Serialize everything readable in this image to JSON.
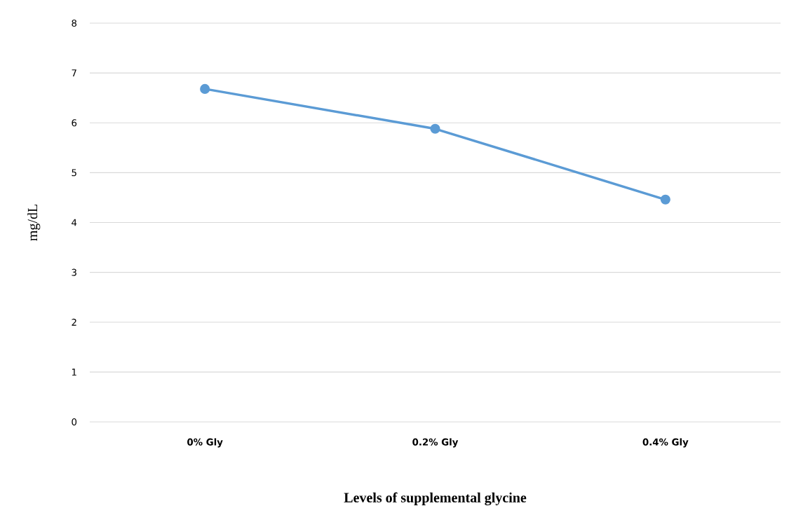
{
  "chart_data": {
    "type": "line",
    "xlabel": "Levels of supplemental glycine",
    "ylabel": "mg/dL",
    "categories": [
      "0% Gly",
      "0.2% Gly",
      "0.4% Gly"
    ],
    "series": [
      {
        "color": "#5b9bd5",
        "values": [
          6.68,
          5.88,
          4.46
        ]
      }
    ],
    "ylim": [
      0,
      8
    ],
    "yticks": [
      0,
      1,
      2,
      3,
      4,
      5,
      6,
      7,
      8
    ],
    "grid": "y",
    "marker": "circle",
    "line_style": "solid"
  }
}
